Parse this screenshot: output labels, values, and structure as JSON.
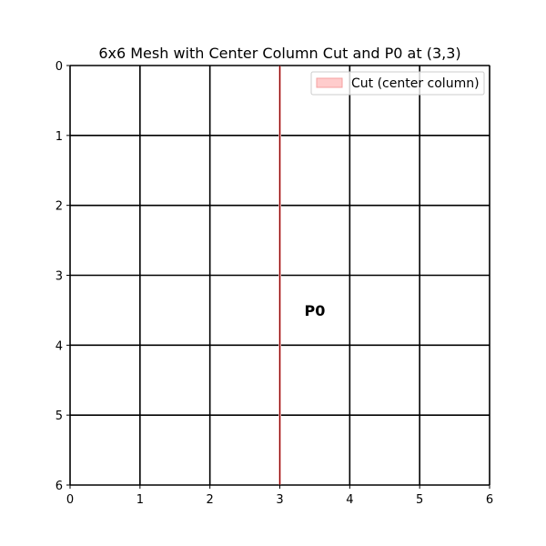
{
  "chart_data": {
    "type": "heatmap",
    "title": "6x6 Mesh with Center Column Cut and P0 at (3,3)",
    "xlabel": "",
    "ylabel": "",
    "xlim": [
      0,
      6
    ],
    "ylim": [
      6,
      0
    ],
    "x_ticks": [
      "0",
      "1",
      "2",
      "3",
      "4",
      "5",
      "6"
    ],
    "y_ticks": [
      "0",
      "1",
      "2",
      "3",
      "4",
      "5",
      "6"
    ],
    "grid": true,
    "mesh": {
      "rows": 6,
      "cols": 6,
      "grid_color": "#000000"
    },
    "cut": {
      "x": 3,
      "label": "Cut (center column)",
      "color": "#ffcccc",
      "line_color": "#8b0000"
    },
    "annotations": [
      {
        "text": "P0",
        "x": 3.5,
        "y": 3.5
      }
    ],
    "legend": {
      "position": "top-right"
    }
  }
}
